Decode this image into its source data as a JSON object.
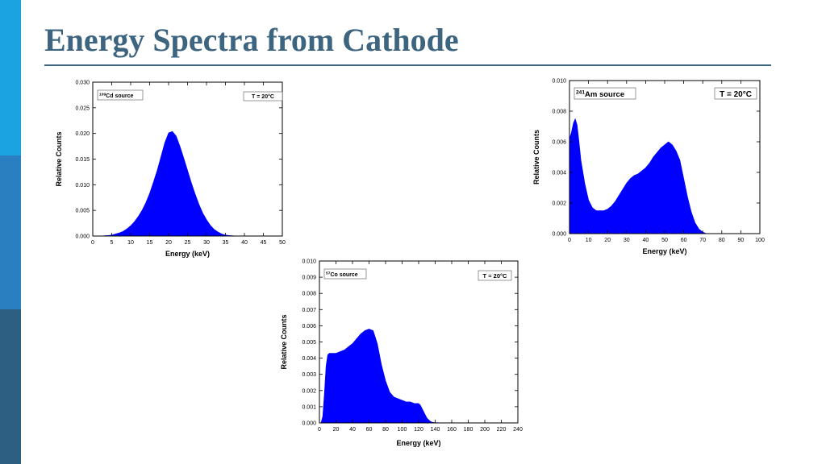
{
  "slide": {
    "title": "Energy Spectra from Cathode",
    "accent_colors": [
      "#1aa3e0",
      "#2a7fc0",
      "#2d5f82"
    ],
    "title_color": "#3d6580"
  },
  "chart_data": [
    {
      "type": "area",
      "color": "#0000ff",
      "source_label": {
        "sup": "109",
        "text": "Cd source"
      },
      "temp_label": "T = 20°C",
      "xlabel": "Energy (keV)",
      "ylabel": "Relative Counts",
      "xlim": [
        0,
        50
      ],
      "ylim": [
        0,
        0.03
      ],
      "xticks": [
        "0",
        "5",
        "10",
        "15",
        "20",
        "25",
        "30",
        "35",
        "40",
        "45",
        "50"
      ],
      "yticks": [
        "0.000",
        "0.005",
        "0.010",
        "0.015",
        "0.020",
        "0.025",
        "0.030"
      ],
      "x": [
        0,
        2,
        4,
        5,
        6,
        7,
        8,
        9,
        10,
        11,
        12,
        13,
        14,
        15,
        16,
        17,
        18,
        19,
        20,
        21,
        22,
        23,
        24,
        25,
        26,
        27,
        28,
        29,
        30,
        31,
        32,
        33,
        34,
        35,
        36,
        38,
        40,
        45,
        50
      ],
      "y": [
        0,
        0,
        0.0001,
        0.0002,
        0.0004,
        0.0006,
        0.0009,
        0.0014,
        0.002,
        0.0028,
        0.0038,
        0.005,
        0.0065,
        0.0083,
        0.0105,
        0.0128,
        0.0155,
        0.0182,
        0.0201,
        0.0204,
        0.0195,
        0.0175,
        0.0152,
        0.0128,
        0.0104,
        0.0082,
        0.0062,
        0.0045,
        0.0032,
        0.0021,
        0.0013,
        0.0008,
        0.0004,
        0.0002,
        0.0001,
        0,
        0,
        0,
        0
      ]
    },
    {
      "type": "area",
      "color": "#0000ff",
      "source_label": {
        "sup": "241",
        "text": "Am source"
      },
      "temp_label": "T = 20°C",
      "temp_color": "#0000c8",
      "xlabel": "Energy (keV)",
      "ylabel": "Relative Counts",
      "xlim": [
        0,
        100
      ],
      "ylim": [
        0,
        0.01
      ],
      "xticks": [
        "0",
        "10",
        "20",
        "30",
        "40",
        "50",
        "60",
        "70",
        "80",
        "90",
        "100"
      ],
      "yticks": [
        "0.000",
        "0.002",
        "0.004",
        "0.006",
        "0.008",
        "0.010"
      ],
      "x": [
        0,
        1,
        2,
        3,
        4,
        5,
        6,
        8,
        10,
        12,
        14,
        16,
        18,
        20,
        22,
        24,
        26,
        28,
        30,
        32,
        34,
        36,
        38,
        40,
        42,
        44,
        46,
        48,
        50,
        52,
        54,
        56,
        57,
        58,
        60,
        62,
        64,
        66,
        68,
        70,
        72,
        74,
        80,
        90,
        100
      ],
      "y": [
        0.0062,
        0.0066,
        0.0072,
        0.0075,
        0.0071,
        0.006,
        0.0048,
        0.0033,
        0.0022,
        0.0017,
        0.0015,
        0.0015,
        0.0015,
        0.0016,
        0.0018,
        0.0021,
        0.0025,
        0.0029,
        0.0033,
        0.0036,
        0.0038,
        0.0039,
        0.0041,
        0.0043,
        0.0046,
        0.005,
        0.0053,
        0.0056,
        0.0058,
        0.006,
        0.0058,
        0.0054,
        0.0051,
        0.0048,
        0.0036,
        0.0024,
        0.0014,
        0.0007,
        0.0003,
        0.0001,
        0,
        0,
        0,
        0,
        0
      ]
    },
    {
      "type": "area",
      "color": "#0000ff",
      "source_label": {
        "sup": "57",
        "text": "Co source"
      },
      "temp_label": "T = 20°C",
      "xlabel": "Energy (keV)",
      "ylabel": "Relative Counts",
      "xlim": [
        0,
        240
      ],
      "ylim": [
        0,
        0.01
      ],
      "xticks": [
        "0",
        "20",
        "40",
        "60",
        "80",
        "100",
        "120",
        "140",
        "160",
        "180",
        "200",
        "220",
        "240"
      ],
      "yticks": [
        "0.000",
        "0.001",
        "0.002",
        "0.003",
        "0.004",
        "0.005",
        "0.006",
        "0.007",
        "0.008",
        "0.009",
        "0.010"
      ],
      "x": [
        0,
        2,
        4,
        6,
        8,
        10,
        12,
        16,
        20,
        25,
        30,
        35,
        40,
        45,
        50,
        55,
        60,
        65,
        70,
        75,
        80,
        85,
        90,
        95,
        100,
        105,
        110,
        115,
        120,
        122,
        124,
        126,
        128,
        130,
        132,
        134,
        136,
        138,
        140,
        145,
        150,
        160,
        200,
        240
      ],
      "y": [
        0,
        0,
        0.0004,
        0.0018,
        0.0035,
        0.0042,
        0.0043,
        0.0043,
        0.0043,
        0.0044,
        0.0045,
        0.0047,
        0.0049,
        0.0052,
        0.0055,
        0.0057,
        0.0058,
        0.0057,
        0.0049,
        0.0036,
        0.0026,
        0.0019,
        0.0016,
        0.0015,
        0.0014,
        0.0013,
        0.0013,
        0.0012,
        0.0012,
        0.0011,
        0.0009,
        0.0007,
        0.0005,
        0.0003,
        0.0002,
        0.0001,
        5e-05,
        3e-05,
        2e-05,
        1e-05,
        0,
        0,
        0,
        0
      ]
    }
  ]
}
